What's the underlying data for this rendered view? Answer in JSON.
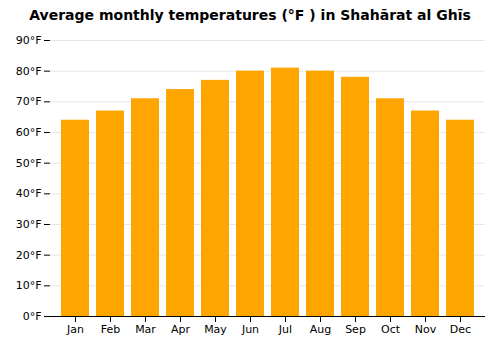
{
  "chart_data": {
    "type": "bar",
    "title": "Average monthly temperatures (°F ) in Shahārat al Ghīs",
    "categories": [
      "Jan",
      "Feb",
      "Mar",
      "Apr",
      "May",
      "Jun",
      "Jul",
      "Aug",
      "Sep",
      "Oct",
      "Nov",
      "Dec"
    ],
    "values": [
      64,
      67,
      71,
      74,
      77,
      80,
      81,
      80,
      78,
      71,
      67,
      64
    ],
    "color": "#FFA500",
    "ylim": [
      0,
      90
    ],
    "yticks": [
      {
        "value": 0,
        "label": "0°F"
      },
      {
        "value": 10,
        "label": "10°F"
      },
      {
        "value": 20,
        "label": "20°F"
      },
      {
        "value": 30,
        "label": "30°F"
      },
      {
        "value": 40,
        "label": "40°F"
      },
      {
        "value": 50,
        "label": "50°F"
      },
      {
        "value": 60,
        "label": "60°F"
      },
      {
        "value": 70,
        "label": "70°F"
      },
      {
        "value": 80,
        "label": "80°F"
      },
      {
        "value": 90,
        "label": "90°F"
      }
    ],
    "grid": true
  }
}
